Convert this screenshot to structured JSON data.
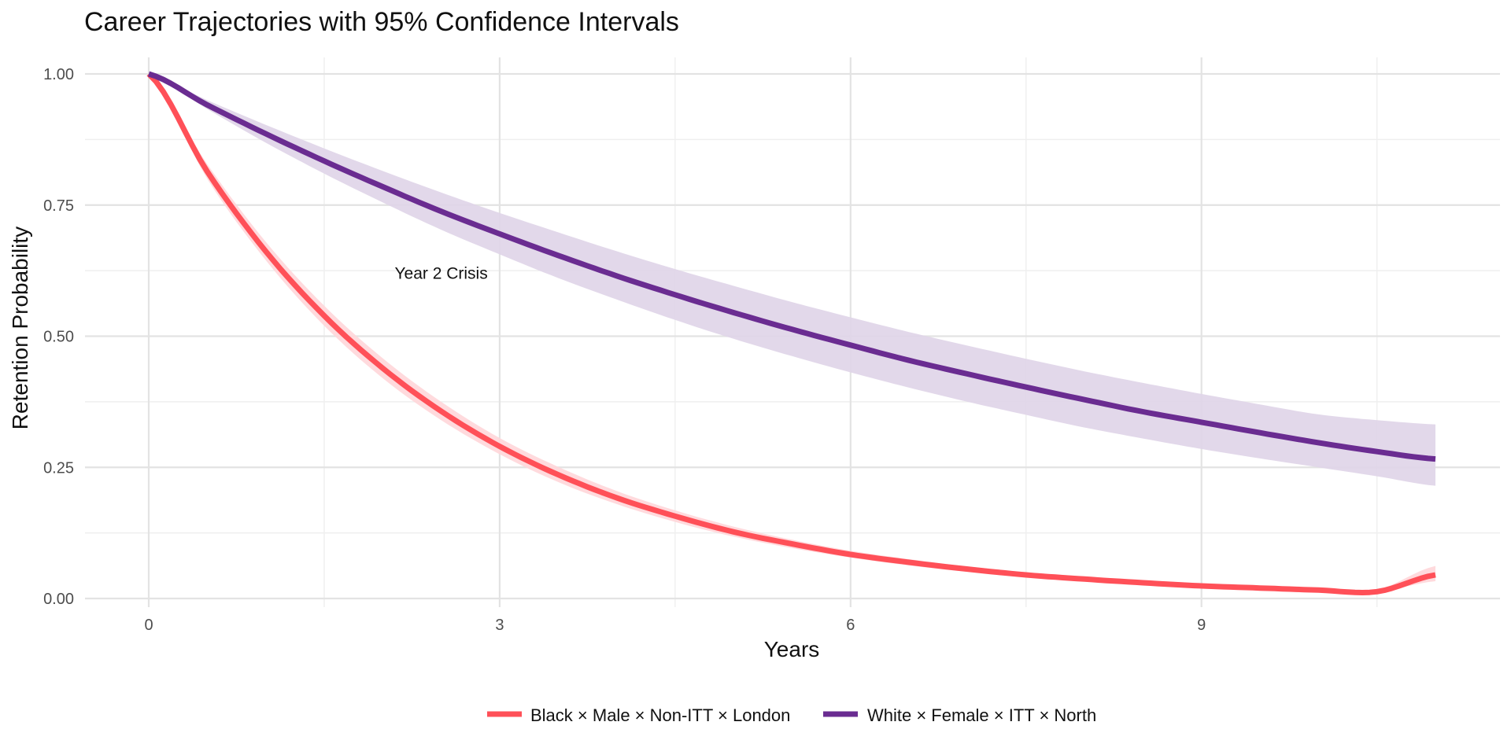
{
  "chart_data": {
    "type": "line",
    "title": "Career Trajectories with 95% Confidence Intervals",
    "xlabel": "Years",
    "ylabel": "Retention Probability",
    "xlim": [
      0,
      11
    ],
    "ylim": [
      0,
      1
    ],
    "x_ticks": [
      0,
      3,
      6,
      9
    ],
    "x_tick_labels": [
      "0",
      "3",
      "6",
      "9"
    ],
    "y_ticks": [
      0,
      0.25,
      0.5,
      0.75,
      1.0
    ],
    "y_tick_labels": [
      "0.00",
      "0.25",
      "0.50",
      "0.75",
      "1.00"
    ],
    "grid": true,
    "legend_position": "bottom",
    "x": [
      0,
      0.5,
      1,
      1.5,
      2,
      2.5,
      3,
      3.5,
      4,
      4.5,
      5,
      5.5,
      6,
      6.5,
      7,
      7.5,
      8,
      8.5,
      9,
      9.5,
      10,
      10.5,
      11
    ],
    "series": [
      {
        "name": "Black × Male × Non-ITT × London",
        "color": "#FF5058",
        "band_color": "#FFD6D9",
        "values": [
          1.0,
          0.814,
          0.662,
          0.539,
          0.439,
          0.357,
          0.29,
          0.236,
          0.192,
          0.157,
          0.127,
          0.104,
          0.084,
          0.069,
          0.056,
          0.045,
          0.037,
          0.03,
          0.024,
          0.02,
          0.016,
          0.013,
          0.045
        ],
        "lower": [
          1.0,
          0.8,
          0.645,
          0.52,
          0.42,
          0.34,
          0.275,
          0.222,
          0.18,
          0.146,
          0.118,
          0.096,
          0.078,
          0.063,
          0.051,
          0.042,
          0.034,
          0.028,
          0.023,
          0.019,
          0.016,
          0.013,
          0.033
        ],
        "upper": [
          1.0,
          0.828,
          0.68,
          0.558,
          0.458,
          0.375,
          0.306,
          0.251,
          0.205,
          0.168,
          0.137,
          0.112,
          0.091,
          0.075,
          0.061,
          0.05,
          0.042,
          0.035,
          0.029,
          0.024,
          0.02,
          0.017,
          0.062
        ]
      },
      {
        "name": "White × Female × ITT × North",
        "color": "#6A2C91",
        "band_color": "#DFD4E8",
        "values": [
          1.0,
          0.941,
          0.886,
          0.834,
          0.785,
          0.738,
          0.695,
          0.654,
          0.615,
          0.579,
          0.545,
          0.513,
          0.483,
          0.454,
          0.428,
          0.403,
          0.379,
          0.356,
          0.336,
          0.316,
          0.297,
          0.28,
          0.266
        ],
        "lower": [
          1.0,
          0.933,
          0.869,
          0.81,
          0.755,
          0.703,
          0.656,
          0.611,
          0.57,
          0.531,
          0.495,
          0.462,
          0.431,
          0.402,
          0.375,
          0.35,
          0.326,
          0.305,
          0.285,
          0.267,
          0.25,
          0.233,
          0.215
        ],
        "upper": [
          1.0,
          0.95,
          0.903,
          0.858,
          0.815,
          0.774,
          0.735,
          0.698,
          0.662,
          0.628,
          0.596,
          0.565,
          0.536,
          0.508,
          0.482,
          0.457,
          0.433,
          0.411,
          0.39,
          0.37,
          0.351,
          0.34,
          0.332
        ]
      }
    ],
    "annotations": [
      {
        "text": "Year 2 Crisis",
        "x": 2.5,
        "y": 0.62
      }
    ]
  }
}
